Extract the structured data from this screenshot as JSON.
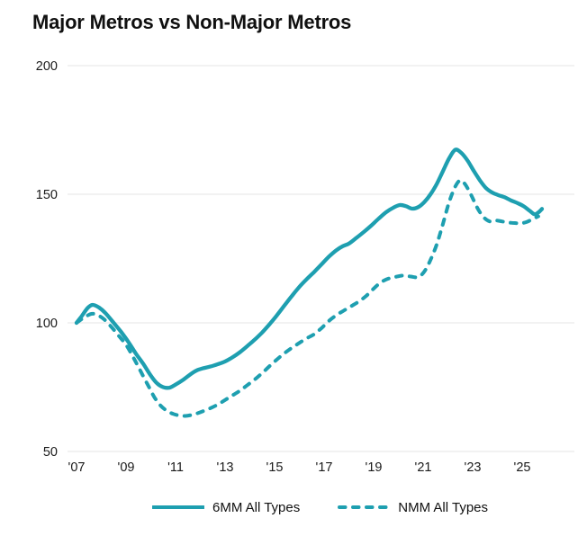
{
  "title": "Major Metros vs Non-Major Metros",
  "colors": {
    "line": "#1E9FB0",
    "grid": "#E4E4E4",
    "axis_text": "#1A1A1A",
    "background": "#FFFFFF"
  },
  "legend": [
    {
      "label": "6MM All Types",
      "style": "solid"
    },
    {
      "label": "NMM All Types",
      "style": "dashed"
    }
  ],
  "chart_data": {
    "type": "line",
    "title": "Major Metros vs Non-Major Metros",
    "xlabel": "",
    "ylabel": "",
    "grid": "horizontal",
    "legend_position": "bottom",
    "ylim": [
      50,
      200
    ],
    "xlim": [
      2007,
      2026
    ],
    "y_ticks": [
      200,
      150,
      100,
      50
    ],
    "x_ticks": [
      "'07",
      "'09",
      "'11",
      "'13",
      "'15",
      "'17",
      "'19",
      "'21",
      "'23",
      "'25"
    ],
    "x_tick_years": [
      2007,
      2009,
      2011,
      2013,
      2015,
      2017,
      2019,
      2021,
      2023,
      2025
    ],
    "series": [
      {
        "name": "6MM All Types",
        "style": "solid",
        "points": [
          [
            2007.0,
            100
          ],
          [
            2007.2,
            102.5
          ],
          [
            2007.45,
            105.8
          ],
          [
            2007.65,
            107
          ],
          [
            2007.9,
            106
          ],
          [
            2008.15,
            104
          ],
          [
            2008.5,
            100
          ],
          [
            2008.8,
            96.5
          ],
          [
            2009.1,
            92.5
          ],
          [
            2009.4,
            88
          ],
          [
            2009.7,
            84
          ],
          [
            2010.0,
            79.5
          ],
          [
            2010.25,
            76.5
          ],
          [
            2010.5,
            75
          ],
          [
            2010.75,
            74.8
          ],
          [
            2011.0,
            76
          ],
          [
            2011.3,
            77.8
          ],
          [
            2011.6,
            80
          ],
          [
            2011.85,
            81.5
          ],
          [
            2012.1,
            82.3
          ],
          [
            2012.4,
            83
          ],
          [
            2012.7,
            83.9
          ],
          [
            2013.0,
            85
          ],
          [
            2013.3,
            86.6
          ],
          [
            2013.6,
            88.6
          ],
          [
            2013.9,
            91
          ],
          [
            2014.2,
            93.5
          ],
          [
            2014.5,
            96.3
          ],
          [
            2014.8,
            99.5
          ],
          [
            2015.1,
            103
          ],
          [
            2015.4,
            106.8
          ],
          [
            2015.7,
            110.5
          ],
          [
            2016.0,
            114
          ],
          [
            2016.3,
            117
          ],
          [
            2016.6,
            119.8
          ],
          [
            2016.9,
            122.8
          ],
          [
            2017.2,
            125.8
          ],
          [
            2017.5,
            128.3
          ],
          [
            2017.75,
            129.8
          ],
          [
            2018.0,
            130.8
          ],
          [
            2018.3,
            133
          ],
          [
            2018.6,
            135.3
          ],
          [
            2018.9,
            137.8
          ],
          [
            2019.2,
            140.5
          ],
          [
            2019.5,
            143
          ],
          [
            2019.8,
            144.8
          ],
          [
            2020.05,
            145.8
          ],
          [
            2020.3,
            145.4
          ],
          [
            2020.55,
            144.4
          ],
          [
            2020.8,
            145
          ],
          [
            2021.05,
            147
          ],
          [
            2021.3,
            150
          ],
          [
            2021.55,
            154
          ],
          [
            2021.8,
            159
          ],
          [
            2022.05,
            164
          ],
          [
            2022.3,
            167.3
          ],
          [
            2022.55,
            166
          ],
          [
            2022.8,
            163
          ],
          [
            2023.05,
            159
          ],
          [
            2023.3,
            155.3
          ],
          [
            2023.55,
            152.3
          ],
          [
            2023.8,
            150.6
          ],
          [
            2024.05,
            149.6
          ],
          [
            2024.3,
            148.8
          ],
          [
            2024.55,
            147.6
          ],
          [
            2024.8,
            146.6
          ],
          [
            2025.05,
            145.4
          ],
          [
            2025.3,
            143.6
          ],
          [
            2025.5,
            142.2
          ],
          [
            2025.65,
            142.9
          ],
          [
            2025.8,
            144.3
          ]
        ]
      },
      {
        "name": "NMM All Types",
        "style": "dashed",
        "points": [
          [
            2007.0,
            100
          ],
          [
            2007.3,
            102
          ],
          [
            2007.6,
            103.5
          ],
          [
            2007.85,
            103
          ],
          [
            2008.1,
            101.5
          ],
          [
            2008.4,
            98.5
          ],
          [
            2008.7,
            95
          ],
          [
            2009.0,
            91.5
          ],
          [
            2009.3,
            86.5
          ],
          [
            2009.6,
            81
          ],
          [
            2009.9,
            75.5
          ],
          [
            2010.15,
            71
          ],
          [
            2010.4,
            67.8
          ],
          [
            2010.65,
            65.8
          ],
          [
            2010.9,
            64.6
          ],
          [
            2011.15,
            64
          ],
          [
            2011.4,
            63.8
          ],
          [
            2011.65,
            64.2
          ],
          [
            2011.9,
            64.9
          ],
          [
            2012.15,
            65.8
          ],
          [
            2012.4,
            66.8
          ],
          [
            2012.7,
            68.2
          ],
          [
            2013.0,
            70
          ],
          [
            2013.3,
            71.8
          ],
          [
            2013.6,
            73.6
          ],
          [
            2013.9,
            75.8
          ],
          [
            2014.2,
            78
          ],
          [
            2014.5,
            80.5
          ],
          [
            2014.8,
            83.2
          ],
          [
            2015.1,
            85.8
          ],
          [
            2015.4,
            88.2
          ],
          [
            2015.7,
            90.3
          ],
          [
            2016.0,
            92.2
          ],
          [
            2016.3,
            94
          ],
          [
            2016.6,
            95.6
          ],
          [
            2016.9,
            98
          ],
          [
            2017.2,
            100.8
          ],
          [
            2017.5,
            103
          ],
          [
            2017.8,
            104.8
          ],
          [
            2018.1,
            106.5
          ],
          [
            2018.4,
            108.3
          ],
          [
            2018.7,
            110.5
          ],
          [
            2019.0,
            113.3
          ],
          [
            2019.3,
            115.8
          ],
          [
            2019.6,
            117.2
          ],
          [
            2019.9,
            117.9
          ],
          [
            2020.2,
            118.4
          ],
          [
            2020.5,
            118
          ],
          [
            2020.8,
            117.8
          ],
          [
            2021.05,
            120
          ],
          [
            2021.3,
            124.5
          ],
          [
            2021.55,
            130.5
          ],
          [
            2021.8,
            138.5
          ],
          [
            2022.05,
            147
          ],
          [
            2022.3,
            153
          ],
          [
            2022.5,
            155.4
          ],
          [
            2022.7,
            153.8
          ],
          [
            2022.95,
            149.5
          ],
          [
            2023.2,
            144.5
          ],
          [
            2023.45,
            141
          ],
          [
            2023.7,
            139.4
          ],
          [
            2023.95,
            139.8
          ],
          [
            2024.2,
            139.4
          ],
          [
            2024.45,
            139
          ],
          [
            2024.7,
            138.8
          ],
          [
            2024.95,
            138.7
          ],
          [
            2025.2,
            139.3
          ],
          [
            2025.45,
            140.5
          ],
          [
            2025.65,
            141.4
          ]
        ]
      }
    ]
  }
}
